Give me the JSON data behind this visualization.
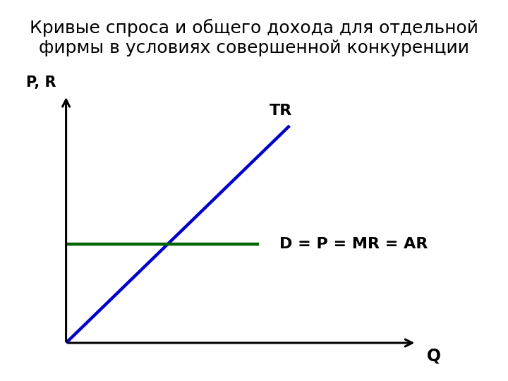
{
  "title_line1": "Кривые спроса и общего дохода для отдельной",
  "title_line2": "фирмы в условиях совершенной конкуренции",
  "ylabel_label": "P, R",
  "xlabel_label": "Q",
  "tr_label": "TR",
  "demand_label": "D = P = MR = AR",
  "title_fontsize": 18,
  "label_fontsize": 16,
  "axis_label_fontsize": 17,
  "pr_label_fontsize": 15,
  "background_color": "#ffffff",
  "tr_color": "#0000cc",
  "demand_color": "#006600",
  "axis_color": "#000000",
  "fig_width": 7.2,
  "fig_height": 5.4,
  "dpi": 100
}
